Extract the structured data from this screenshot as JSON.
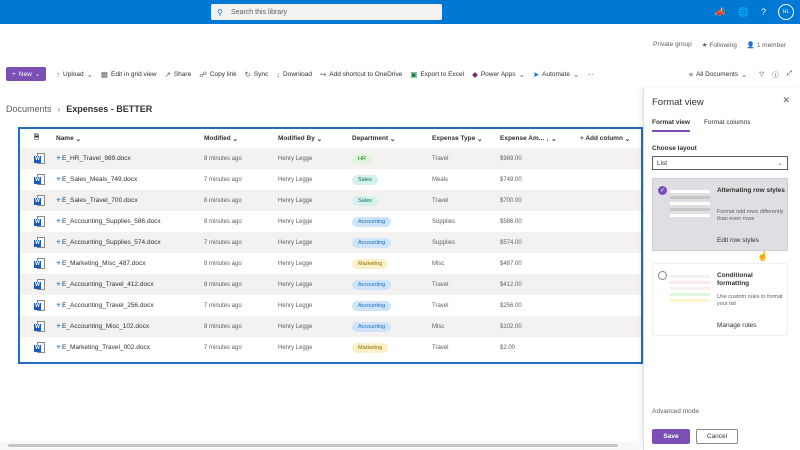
{
  "search": {
    "placeholder": "Search this library"
  },
  "user": {
    "initials": "HL"
  },
  "group": {
    "privacy": "Private group",
    "following": "Following",
    "members": "1 member"
  },
  "commands": {
    "new": "New",
    "upload": "Upload",
    "edit_grid": "Edit in grid view",
    "share": "Share",
    "copy_link": "Copy link",
    "sync": "Sync",
    "download": "Download",
    "add_shortcut": "Add shortcut to OneDrive",
    "export_excel": "Export to Excel",
    "power_apps": "Power Apps",
    "automate": "Automate",
    "more": "···",
    "view": "All Documents"
  },
  "breadcrumb": {
    "root": "Documents",
    "current": "Expenses - BETTER"
  },
  "columns": {
    "name": "Name",
    "modified": "Modified",
    "modified_by": "Modified By",
    "department": "Department",
    "expense_type": "Expense Type",
    "expense_amount": "Expense Am...",
    "add_column": "+ Add column"
  },
  "rows": [
    {
      "name": "E_HR_Travel_989.docx",
      "modified": "8 minutes ago",
      "by": "Henry Legge",
      "dept": "HR",
      "type": "Travel",
      "amount": "$989.00"
    },
    {
      "name": "E_Sales_Meals_749.docx",
      "modified": "7 minutes ago",
      "by": "Henry Legge",
      "dept": "Sales",
      "type": "Meals",
      "amount": "$749.00"
    },
    {
      "name": "E_Sales_Travel_700.docx",
      "modified": "8 minutes ago",
      "by": "Henry Legge",
      "dept": "Sales",
      "type": "Travel",
      "amount": "$700.00"
    },
    {
      "name": "E_Accounting_Supplies_586.docx",
      "modified": "8 minutes ago",
      "by": "Henry Legge",
      "dept": "Accounting",
      "type": "Supplies",
      "amount": "$586.00"
    },
    {
      "name": "E_Accounting_Supplies_574.docx",
      "modified": "7 minutes ago",
      "by": "Henry Legge",
      "dept": "Accounting",
      "type": "Supplies",
      "amount": "$574.00"
    },
    {
      "name": "E_Marketing_Misc_487.docx",
      "modified": "8 minutes ago",
      "by": "Henry Legge",
      "dept": "Marketing",
      "type": "Misc",
      "amount": "$487.00"
    },
    {
      "name": "E_Accounting_Travel_412.docx",
      "modified": "8 minutes ago",
      "by": "Henry Legge",
      "dept": "Accounting",
      "type": "Travel",
      "amount": "$412.00"
    },
    {
      "name": "E_Accounting_Travel_256.docx",
      "modified": "7 minutes ago",
      "by": "Henry Legge",
      "dept": "Accounting",
      "type": "Travel",
      "amount": "$256.00"
    },
    {
      "name": "E_Accounting_Misc_102.docx",
      "modified": "8 minutes ago",
      "by": "Henry Legge",
      "dept": "Accounting",
      "type": "Misc",
      "amount": "$102.00"
    },
    {
      "name": "E_Marketing_Travel_002.docx",
      "modified": "7 minutes ago",
      "by": "Henry Legge",
      "dept": "Marketing",
      "type": "Travel",
      "amount": "$2.00"
    }
  ],
  "dept_colors": {
    "HR": {
      "bg": "#dff6dd",
      "fg": "#107c10"
    },
    "Sales": {
      "bg": "#d4f2ec",
      "fg": "#0b6a5a"
    },
    "Accounting": {
      "bg": "#cfe4fa",
      "fg": "#106ebe"
    },
    "Marketing": {
      "bg": "#fdf0c8",
      "fg": "#8a6d00"
    }
  },
  "panel": {
    "title": "Format view",
    "tabs": [
      "Format view",
      "Format columns"
    ],
    "layout_label": "Choose layout",
    "layout_value": "List",
    "option1": {
      "title": "Alternating row styles",
      "desc": "Format odd rows differently than even rows",
      "link": "Edit row styles"
    },
    "option2": {
      "title": "Conditional formatting",
      "desc": "Use custom rules to format your list",
      "link": "Manage rules"
    },
    "advanced": "Advanced mode",
    "save": "Save",
    "cancel": "Cancel"
  },
  "colors": {
    "brand": "#7b4fb5",
    "suitebar": "#0078d4",
    "highlight_border": "#1f6ebf"
  }
}
